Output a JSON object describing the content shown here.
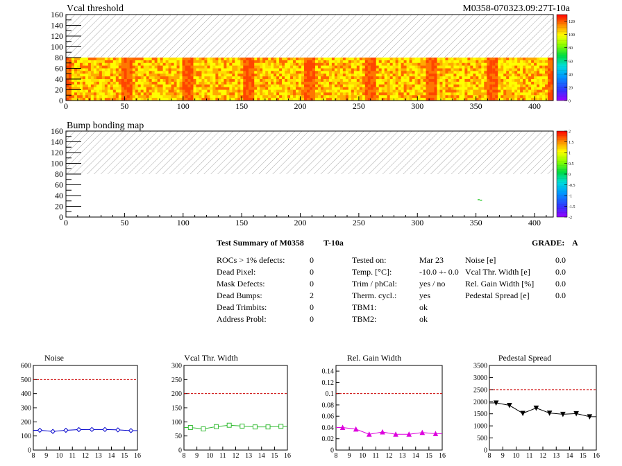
{
  "header": {
    "module_id": "M0358-070323.09:27T-10a"
  },
  "charts_top": [
    {
      "id": "vcal",
      "title": "Vcal threshold",
      "xlim": [
        0,
        416
      ],
      "ylim": [
        0,
        160
      ],
      "xticks": [
        "0",
        "50",
        "100",
        "150",
        "200",
        "250",
        "300",
        "350",
        "400"
      ],
      "yticks": [
        "0",
        "20",
        "40",
        "60",
        "80",
        "100",
        "120",
        "140",
        "160"
      ],
      "palette_ticks": [
        "0",
        "20",
        "40",
        "60",
        "80",
        "100",
        "120"
      ],
      "module_segments": 8,
      "active_rows": [
        0,
        80
      ],
      "colors": {
        "low": "#ffff00",
        "mid": "#ffaa00",
        "high": "#ff4400",
        "hatch": "#9a9a9a"
      }
    },
    {
      "id": "bump",
      "title": "Bump bonding map",
      "xlim": [
        0,
        416
      ],
      "ylim": [
        0,
        160
      ],
      "xticks": [
        "0",
        "50",
        "100",
        "150",
        "200",
        "250",
        "300",
        "350",
        "400"
      ],
      "yticks": [
        "0",
        "20",
        "40",
        "60",
        "80",
        "100",
        "120",
        "140",
        "160"
      ],
      "palette_ticks": [
        "-2",
        "-1.5",
        "-1",
        "-0.5",
        "0",
        "0.5",
        "1",
        "1.5",
        "2"
      ],
      "dead_bumps": [
        {
          "x": 352,
          "y": 32
        },
        {
          "x": 354,
          "y": 31
        }
      ]
    }
  ],
  "summary": {
    "title": "Test Summary of M0358",
    "temp_label": "T-10a",
    "grade_label": "GRADE:",
    "grade": "A",
    "left": [
      {
        "label": "ROCs > 1% defects:",
        "value": "0"
      },
      {
        "label": "Dead Pixel:",
        "value": "0"
      },
      {
        "label": "Mask Defects:",
        "value": "0"
      },
      {
        "label": "Dead Bumps:",
        "value": "2"
      },
      {
        "label": "Dead Trimbits:",
        "value": "0"
      },
      {
        "label": "Address Probl:",
        "value": "0"
      }
    ],
    "middle": [
      {
        "label": "Tested on:",
        "value": "Mar 23"
      },
      {
        "label": "Temp. [°C]:",
        "value": "-10.0 +- 0.0"
      },
      {
        "label": "Trim / phCal:",
        "value": "yes / no"
      },
      {
        "label": "Therm. cycl.:",
        "value": "yes"
      },
      {
        "label": "TBM1:",
        "value": "ok"
      },
      {
        "label": "TBM2:",
        "value": "ok"
      }
    ],
    "right": [
      {
        "label": "Noise [e]",
        "value": "0.0"
      },
      {
        "label": "Vcal Thr. Width [e]",
        "value": "0.0"
      },
      {
        "label": "Rel. Gain Width [%]",
        "value": "0.0"
      },
      {
        "label": "Pedestal Spread [e]",
        "value": "0.0"
      }
    ]
  },
  "chart_data": [
    {
      "type": "line",
      "title": "Noise",
      "x": [
        8.5,
        9.5,
        10.5,
        11.5,
        12.5,
        13.5,
        14.5,
        15.5
      ],
      "y": [
        140,
        132,
        140,
        145,
        146,
        146,
        143,
        138
      ],
      "xlim": [
        8,
        16
      ],
      "ylim": [
        0,
        600
      ],
      "xticks": [
        "8",
        "9",
        "10",
        "11",
        "12",
        "13",
        "14",
        "15",
        "16"
      ],
      "yticks": [
        "0",
        "100",
        "200",
        "300",
        "400",
        "500",
        "600"
      ],
      "limit": 500,
      "color": "#0000cc",
      "marker": "diamond"
    },
    {
      "type": "line",
      "title": "Vcal Thr. Width",
      "x": [
        8.5,
        9.5,
        10.5,
        11.5,
        12.5,
        13.5,
        14.5,
        15.5
      ],
      "y": [
        80,
        75,
        83,
        88,
        85,
        82,
        82,
        84
      ],
      "xlim": [
        8,
        16
      ],
      "ylim": [
        0,
        300
      ],
      "xticks": [
        "8",
        "9",
        "10",
        "11",
        "12",
        "13",
        "14",
        "15",
        "16"
      ],
      "yticks": [
        "0",
        "50",
        "100",
        "150",
        "200",
        "250",
        "300"
      ],
      "limit": 200,
      "color": "#33bb33",
      "marker": "square"
    },
    {
      "type": "line",
      "title": "Rel. Gain Width",
      "x": [
        8.5,
        9.5,
        10.5,
        11.5,
        12.5,
        13.5,
        14.5,
        15.5
      ],
      "y": [
        0.04,
        0.037,
        0.028,
        0.032,
        0.028,
        0.028,
        0.031,
        0.029
      ],
      "xlim": [
        8,
        16
      ],
      "ylim": [
        0,
        0.15
      ],
      "xticks": [
        "8",
        "9",
        "10",
        "11",
        "12",
        "13",
        "14",
        "15",
        "16"
      ],
      "yticks": [
        "0",
        "0.02",
        "0.04",
        "0.06",
        "0.08",
        "0.1",
        "0.12",
        "0.14"
      ],
      "limit": 0.1,
      "color": "#dd00dd",
      "marker": "triangle"
    },
    {
      "type": "line",
      "title": "Pedestal Spread",
      "x": [
        8.5,
        9.5,
        10.5,
        11.5,
        12.5,
        13.5,
        14.5,
        15.5
      ],
      "y": [
        1950,
        1850,
        1520,
        1740,
        1530,
        1480,
        1510,
        1380
      ],
      "xlim": [
        8,
        16
      ],
      "ylim": [
        0,
        3500
      ],
      "xticks": [
        "8",
        "9",
        "10",
        "11",
        "12",
        "13",
        "14",
        "15",
        "16"
      ],
      "yticks": [
        "0",
        "500",
        "1000",
        "1500",
        "2000",
        "2500",
        "3000",
        "3500"
      ],
      "limit": 2500,
      "color": "#000000",
      "marker": "triangle-down"
    }
  ]
}
